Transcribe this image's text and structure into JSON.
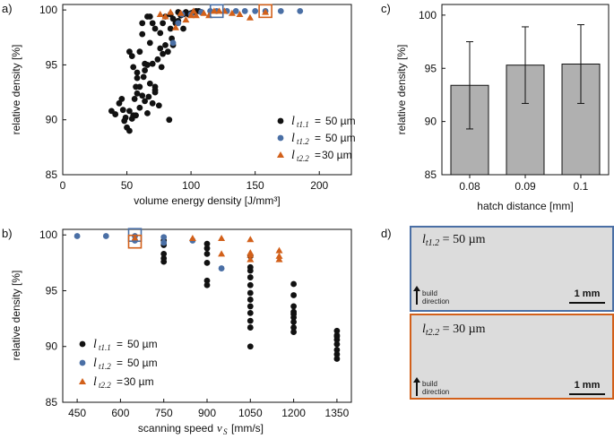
{
  "chart_data": [
    {
      "panel": "a)",
      "type": "scatter",
      "xlabel": "volume energy density [J/mm³]",
      "ylabel": "relative density [%]",
      "xlim": [
        0,
        225
      ],
      "ylim": [
        85,
        100.5
      ],
      "xticks": [
        0,
        50,
        100,
        150,
        200
      ],
      "yticks": [
        85,
        90,
        95,
        100
      ],
      "legend": [
        "lt1.1 = 50 µm",
        "lt1.2 = 50 µm",
        "lt2.2 =30 µm"
      ],
      "series": [
        {
          "name": "lt1.1",
          "color": "#111111",
          "marker": "circle",
          "points": [
            [
              38,
              90.8
            ],
            [
              41,
              90.5
            ],
            [
              44,
              91.5
            ],
            [
              46,
              91.9
            ],
            [
              47,
              90.9
            ],
            [
              48,
              89.9
            ],
            [
              49,
              90.2
            ],
            [
              50,
              89.3
            ],
            [
              52,
              89.0
            ],
            [
              52,
              90.8
            ],
            [
              54,
              90.1
            ],
            [
              55,
              90.4
            ],
            [
              56,
              91.9
            ],
            [
              57,
              90.4
            ],
            [
              58,
              92.4
            ],
            [
              57,
              93.0
            ],
            [
              58,
              93.8
            ],
            [
              60,
              91.1
            ],
            [
              60,
              93.0
            ],
            [
              62,
              92.2
            ],
            [
              63,
              93.9
            ],
            [
              64,
              94.5
            ],
            [
              64,
              91.7
            ],
            [
              66,
              90.6
            ],
            [
              67,
              92.1
            ],
            [
              68,
              93.3
            ],
            [
              70,
              95.1
            ],
            [
              70,
              91.5
            ],
            [
              72,
              93.0
            ],
            [
              72,
              92.5
            ],
            [
              74,
              95.5
            ],
            [
              76,
              96.5
            ],
            [
              77,
              94.8
            ],
            [
              78,
              96.0
            ],
            [
              80,
              96.8
            ],
            [
              82,
              96.2
            ],
            [
              84,
              98.3
            ],
            [
              85,
              97.4
            ],
            [
              86,
              96.8
            ],
            [
              88,
              98.8
            ],
            [
              90,
              99.0
            ],
            [
              92,
              99.5
            ],
            [
              94,
              99.6
            ],
            [
              96,
              99.8
            ],
            [
              98,
              99.6
            ],
            [
              100,
              99.7
            ],
            [
              102,
              99.8
            ],
            [
              104,
              99.9
            ],
            [
              106,
              99.9
            ],
            [
              108,
              99.8
            ],
            [
              52,
              96.2
            ],
            [
              54,
              95.8
            ],
            [
              55,
              94.8
            ],
            [
              58,
              94.3
            ],
            [
              60,
              96.2
            ],
            [
              62,
              97.8
            ],
            [
              64,
              95.1
            ],
            [
              66,
              95.0
            ],
            [
              68,
              97.0
            ],
            [
              72,
              98.3
            ],
            [
              76,
              97.9
            ],
            [
              78,
              98.8
            ],
            [
              80,
              99.4
            ],
            [
              84,
              99.6
            ],
            [
              86,
              99.2
            ],
            [
              90,
              99.8
            ],
            [
              94,
              98.3
            ],
            [
              83,
              90.0
            ],
            [
              75,
              91.3
            ],
            [
              72,
              92.7
            ],
            [
              62,
              98.8
            ],
            [
              66,
              99.4
            ],
            [
              68,
              99.4
            ],
            [
              70,
              98.8
            ]
          ]
        },
        {
          "name": "lt1.2",
          "color": "#4a6fa5",
          "marker": "circle",
          "points": [
            [
              86,
              97.0
            ],
            [
              90,
              98.8
            ],
            [
              93,
              99.6
            ],
            [
              100,
              99.6
            ],
            [
              108,
              99.8
            ],
            [
              115,
              99.9
            ],
            [
              120,
              99.9
            ],
            [
              128,
              99.9
            ],
            [
              135,
              99.9
            ],
            [
              142,
              99.9
            ],
            [
              150,
              99.9
            ],
            [
              158,
              99.9
            ],
            [
              170,
              99.9
            ],
            [
              185,
              99.9
            ]
          ]
        },
        {
          "name": "lt2.2",
          "color": "#d2601a",
          "marker": "triangle",
          "points": [
            [
              76,
              99.6
            ],
            [
              80,
              99.4
            ],
            [
              84,
              99.8
            ],
            [
              88,
              98.4
            ],
            [
              92,
              99.7
            ],
            [
              96,
              99.1
            ],
            [
              100,
              99.5
            ],
            [
              102,
              99.9
            ],
            [
              104,
              99.5
            ],
            [
              110,
              99.7
            ],
            [
              114,
              99.5
            ],
            [
              118,
              99.9
            ],
            [
              122,
              99.9
            ],
            [
              126,
              99.9
            ],
            [
              132,
              99.7
            ],
            [
              138,
              99.6
            ],
            [
              146,
              99.3
            ],
            [
              158,
              99.8
            ]
          ]
        }
      ],
      "highlights": [
        {
          "x": 120,
          "y": 99.9,
          "color": "#4a6fa5"
        },
        {
          "x": 158,
          "y": 99.9,
          "color": "#d2601a"
        }
      ]
    },
    {
      "panel": "b)",
      "type": "scatter",
      "xlabel": "scanning speed",
      "xlabel_var": "v",
      "xlabel_sub": "S",
      "xlabel_unit": "[mm/s]",
      "ylabel": "relative density [%]",
      "xlim": [
        400,
        1400
      ],
      "ylim": [
        85,
        100.5
      ],
      "xticks": [
        450,
        600,
        750,
        900,
        1050,
        1200,
        1350
      ],
      "yticks": [
        85,
        90,
        95,
        100
      ],
      "legend": [
        "lt1.1 = 50 µm",
        "lt1.2 = 50 µm",
        "lt2.2 =30 µm"
      ],
      "series": [
        {
          "name": "lt1.1",
          "color": "#111111",
          "marker": "circle",
          "points": [
            [
              750,
              99.5
            ],
            [
              750,
              99.1
            ],
            [
              750,
              98.3
            ],
            [
              750,
              97.6
            ],
            [
              750,
              97.9
            ],
            [
              900,
              99.2
            ],
            [
              900,
              98.8
            ],
            [
              900,
              98.3
            ],
            [
              900,
              97.5
            ],
            [
              900,
              95.9
            ],
            [
              900,
              95.5
            ],
            [
              1050,
              96.8
            ],
            [
              1050,
              96.2
            ],
            [
              1050,
              95.5
            ],
            [
              1050,
              94.8
            ],
            [
              1050,
              94.2
            ],
            [
              1050,
              93.6
            ],
            [
              1050,
              93.0
            ],
            [
              1050,
              92.3
            ],
            [
              1050,
              91.7
            ],
            [
              1050,
              90.0
            ],
            [
              1050,
              98.1
            ],
            [
              1050,
              97.1
            ],
            [
              1200,
              95.6
            ],
            [
              1200,
              94.6
            ],
            [
              1200,
              93.6
            ],
            [
              1200,
              93.1
            ],
            [
              1200,
              92.6
            ],
            [
              1200,
              92.2
            ],
            [
              1200,
              91.7
            ],
            [
              1200,
              91.3
            ],
            [
              1200,
              92.9
            ],
            [
              1350,
              91.4
            ],
            [
              1350,
              91.0
            ],
            [
              1350,
              90.6
            ],
            [
              1350,
              90.2
            ],
            [
              1350,
              89.7
            ],
            [
              1350,
              89.3
            ],
            [
              1350,
              88.9
            ],
            [
              1350,
              90.9
            ]
          ]
        },
        {
          "name": "lt1.2",
          "color": "#4a6fa5",
          "marker": "circle",
          "points": [
            [
              450,
              99.9
            ],
            [
              550,
              99.9
            ],
            [
              650,
              99.9
            ],
            [
              750,
              99.8
            ],
            [
              850,
              99.5
            ],
            [
              950,
              97.0
            ],
            [
              650,
              99.5
            ],
            [
              750,
              99.3
            ]
          ]
        },
        {
          "name": "lt2.2",
          "color": "#d2601a",
          "marker": "triangle",
          "points": [
            [
              650,
              99.7
            ],
            [
              850,
              99.7
            ],
            [
              950,
              99.7
            ],
            [
              950,
              98.3
            ],
            [
              1050,
              99.6
            ],
            [
              1050,
              98.4
            ],
            [
              1050,
              98.2
            ],
            [
              1050,
              97.8
            ],
            [
              1150,
              98.6
            ],
            [
              1150,
              98.1
            ],
            [
              1150,
              97.8
            ]
          ]
        }
      ],
      "highlights": [
        {
          "x": 650,
          "y": 100.0,
          "color": "#4a6fa5"
        },
        {
          "x": 650,
          "y": 99.4,
          "color": "#d2601a"
        }
      ]
    },
    {
      "panel": "c)",
      "type": "bar",
      "xlabel": "hatch distance [mm]",
      "ylabel": "relative density [%]",
      "categories": [
        "0.08",
        "0.09",
        "0.1"
      ],
      "values": [
        93.4,
        95.3,
        95.4
      ],
      "errors": [
        4.1,
        3.6,
        3.7
      ],
      "ylim": [
        85,
        101
      ],
      "yticks": [
        85,
        90,
        95,
        100
      ],
      "color": "#b0b0b0"
    }
  ],
  "panel_d": {
    "label": "d)",
    "images": [
      {
        "var": "l",
        "sub": "t1.2",
        "rest": " = 50 µm",
        "note_line1": "build",
        "note_line2": "direction",
        "scale": "1 mm",
        "border": "#4a6fa5"
      },
      {
        "var": "l",
        "sub": "t2.2",
        "rest": " = 30 µm",
        "note_line1": "build",
        "note_line2": "direction",
        "scale": "1 mm",
        "border": "#d2601a"
      }
    ]
  },
  "legend_symbols": {
    "var": "l",
    "eq": "=",
    "subs": [
      "t1.1",
      "t1.2",
      "t2.2"
    ],
    "values": [
      "50 µm",
      "50 µm",
      "30 µm"
    ]
  }
}
